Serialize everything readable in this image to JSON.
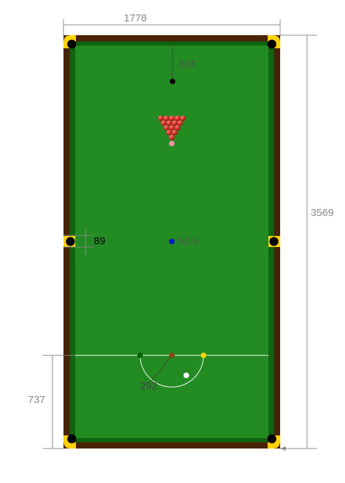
{
  "dimensions": {
    "table_width": "1778",
    "table_length": "3569",
    "black_spot_from_cushion": "324",
    "middle_pocket_opening": "89",
    "ball_diameter": "52.5",
    "baulk_line_distance": "737",
    "d_radius": "292"
  },
  "colors": {
    "cloth": "#228b22",
    "cushion": "#0f650f",
    "rail": "#4a2208",
    "pocket_plate": "#ffd400",
    "pocket": "#000000",
    "dimension_line": "#888888",
    "dimension_text": "#888888",
    "red_ball": "#e00000",
    "pink_ball": "#ff8fa6",
    "black_ball": "#000000",
    "blue_ball": "#0a19c9",
    "brown_ball": "#8b4513",
    "green_ball": "#006400",
    "yellow_ball": "#ffd700",
    "cue_ball": "#ffffff"
  },
  "balls": {
    "reds": 15,
    "colours": [
      "black",
      "pink",
      "blue",
      "brown",
      "green",
      "yellow",
      "cue"
    ]
  }
}
